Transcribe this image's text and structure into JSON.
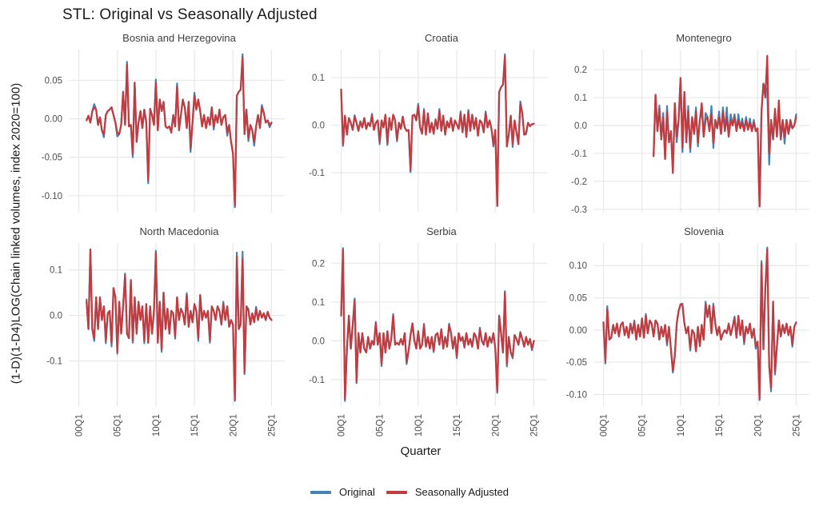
{
  "page": {
    "title": "STL: Original vs Seasonally Adjusted"
  },
  "axes": {
    "x_title": "Quarter",
    "y_title": "(1-D)(1-D4)LOG(Chain linked volumes, index 2020=100)"
  },
  "legend": {
    "items": [
      {
        "label": "Original",
        "color": "#4682b4"
      },
      {
        "label": "Seasonally Adjusted",
        "color": "#c23b3e"
      }
    ]
  },
  "chart_data": {
    "type": "line",
    "title": "STL: Original vs Seasonally Adjusted",
    "xlabel": "Quarter",
    "ylabel": "(1-D)(1-D4)LOG(Chain linked volumes, index 2020=100)",
    "x_unit": "quarterly, 2000Q1 to 2025Q1",
    "x_ticks": [
      "00Q1",
      "05Q1",
      "10Q1",
      "15Q1",
      "20Q1",
      "25Q1"
    ],
    "x_tick_years": [
      2000,
      2005,
      2010,
      2015,
      2020,
      2025
    ],
    "x_domain": [
      1998.7,
      2026.3
    ],
    "grid": true,
    "grid_color": "#e8e8e8",
    "legend_position": "bottom",
    "series_names": [
      "Original",
      "Seasonally Adjusted"
    ],
    "colors": {
      "original": "#4682b4",
      "seasonally_adjusted": "#c23b3e"
    },
    "note": "original = seasonally_adjusted value + orig_delta at matching absolute quarter index; start_index 0 = 2000Q1",
    "panels": [
      {
        "title": "Bosnia and Herzegovina",
        "y_tick_labels": [
          "0.05",
          "0.00",
          "-0.05",
          "-0.10"
        ],
        "y_ticks": [
          0.05,
          0.0,
          -0.05,
          -0.1
        ],
        "y_domain": [
          -0.122,
          0.09
        ],
        "start_index": 4,
        "sa": [
          -0.002,
          0.004,
          -0.005,
          0.01,
          0.015,
          0.012,
          -0.008,
          0.002,
          -0.015,
          -0.02,
          0.005,
          0.01,
          0.012,
          0.015,
          0.005,
          -0.005,
          -0.018,
          -0.02,
          -0.008,
          0.035,
          -0.008,
          0.07,
          -0.01,
          -0.008,
          -0.046,
          0.047,
          -0.03,
          -0.005,
          0.01,
          -0.012,
          0.012,
          -0.005,
          -0.08,
          0.013,
          0.005,
          -0.008,
          0.047,
          -0.015,
          0.025,
          0.01,
          0.022,
          -0.01,
          -0.012,
          -0.01,
          -0.018,
          0.005,
          -0.01,
          0.042,
          -0.015,
          0.005,
          0.025,
          0.015,
          -0.012,
          0.022,
          -0.038,
          -0.005,
          0.03,
          0.012,
          0.025,
          0.01,
          -0.01,
          0.005,
          -0.012,
          0.002,
          -0.008,
          0.015,
          -0.01,
          0.005,
          -0.005,
          0.012,
          -0.008,
          0.002,
          0.005,
          -0.018,
          -0.008,
          -0.03,
          -0.045,
          -0.113,
          0.03,
          0.035,
          0.038,
          0.08,
          -0.02,
          0.012,
          -0.025,
          -0.008,
          -0.015,
          -0.03,
          -0.01,
          0.005,
          -0.012,
          0.015,
          0.008,
          -0.005,
          -0.002,
          -0.008,
          -0.005
        ],
        "orig_delta": {
          "8": 0.004,
          "13": -0.004,
          "20": -0.005,
          "25": 0.004,
          "28": -0.004,
          "36": -0.004,
          "40": 0.004,
          "51": 0.004,
          "58": -0.005,
          "60": 0.004,
          "70": -0.004,
          "77": -0.004,
          "81": -0.002,
          "85": 0.004,
          "88": -0.004,
          "91": -0.005,
          "95": 0.003,
          "99": -0.003
        }
      },
      {
        "title": "Croatia",
        "y_tick_labels": [
          "0.1",
          "0.0",
          "-0.1"
        ],
        "y_ticks": [
          0.1,
          0.0,
          -0.1
        ],
        "y_domain": [
          -0.184,
          0.159
        ],
        "start_index": 0,
        "sa": [
          0.075,
          -0.04,
          0.02,
          -0.02,
          0.015,
          0.005,
          -0.01,
          0.018,
          0.005,
          -0.012,
          0.008,
          -0.005,
          0.015,
          -0.008,
          0.005,
          -0.002,
          0.02,
          -0.01,
          0.005,
          0.01,
          -0.035,
          0.01,
          -0.005,
          0.022,
          -0.038,
          0.015,
          -0.01,
          0.022,
          0.01,
          -0.03,
          0.005,
          -0.008,
          0.018,
          -0.005,
          -0.012,
          -0.01,
          -0.095,
          0.02,
          0.022,
          0.01,
          0.04,
          -0.005,
          -0.018,
          0.03,
          -0.02,
          0.025,
          -0.015,
          0.005,
          -0.018,
          0.012,
          -0.008,
          0.03,
          -0.012,
          0.02,
          -0.02,
          0.008,
          -0.005,
          0.015,
          -0.012,
          0.01,
          0.002,
          -0.008,
          0.025,
          -0.015,
          0.022,
          -0.025,
          0.028,
          -0.012,
          0.022,
          -0.008,
          0.015,
          -0.022,
          0.01,
          0.005,
          -0.015,
          0.025,
          -0.005,
          0.01,
          -0.008,
          -0.04,
          -0.01,
          -0.17,
          0.07,
          0.08,
          0.085,
          0.145,
          -0.045,
          -0.02,
          0.02,
          -0.04,
          0.01,
          -0.015,
          -0.04,
          0.045,
          0.025,
          -0.02,
          -0.015,
          0.005,
          -0.002,
          0.002,
          0.003
        ],
        "orig_delta": {
          "1": -0.004,
          "7": 0.003,
          "16": 0.004,
          "20": -0.005,
          "24": -0.004,
          "29": -0.004,
          "36": -0.004,
          "40": 0.005,
          "43": 0.004,
          "51": 0.004,
          "62": 0.004,
          "66": 0.004,
          "75": 0.004,
          "79": -0.005,
          "85": 0.004,
          "89": -0.006,
          "93": 0.005,
          "96": -0.004
        }
      },
      {
        "title": "Montenegro",
        "y_tick_labels": [
          "0.2",
          "0.1",
          "0.0",
          "-0.1",
          "-0.2",
          "-0.3"
        ],
        "y_ticks": [
          0.2,
          0.1,
          0.0,
          -0.1,
          -0.2,
          -0.3
        ],
        "y_domain": [
          -0.312,
          0.272
        ],
        "start_index": 26,
        "sa": [
          -0.11,
          0.11,
          -0.02,
          0.06,
          -0.05,
          0.03,
          -0.12,
          0.05,
          -0.06,
          -0.02,
          -0.17,
          0.08,
          -0.04,
          0.02,
          0.17,
          -0.08,
          0.12,
          -0.06,
          0.05,
          -0.08,
          0.03,
          -0.03,
          0.05,
          -0.06,
          0.02,
          0.08,
          -0.04,
          0.02,
          0.03,
          -0.02,
          0.04,
          -0.06,
          0.02,
          -0.01,
          0.03,
          -0.03,
          0.05,
          -0.02,
          0.03,
          -0.04,
          0.02,
          0.0,
          0.03,
          -0.02,
          0.02,
          -0.01,
          0.01,
          -0.02,
          0.02,
          -0.015,
          0.01,
          -0.02,
          0.01,
          -0.02,
          -0.01,
          -0.29,
          0.05,
          0.15,
          0.1,
          0.25,
          -0.1,
          0.02,
          -0.05,
          0.06,
          -0.04,
          0.09,
          -0.05,
          0.02,
          -0.04,
          0.02,
          -0.03,
          0.02,
          -0.01,
          0.0,
          0.03
        ],
        "orig_delta": {
          "29": 0.012,
          "31": 0.015,
          "33": 0.02,
          "38": -0.02,
          "41": -0.015,
          "44": 0.02,
          "45": -0.015,
          "48": 0.015,
          "49": -0.015,
          "51": -0.02,
          "53": 0.025,
          "56": 0.03,
          "57": -0.02,
          "60": 0.02,
          "62": 0.015,
          "64": 0.035,
          "66": 0.02,
          "68": 0.01,
          "70": 0.02,
          "72": 0.015,
          "74": 0.01,
          "76": 0.015,
          "78": 0.01,
          "84": 0.035,
          "85": -0.12,
          "86": -0.04,
          "89": -0.02,
          "91": -0.025,
          "94": -0.025,
          "97": -0.015,
          "100": 0.01
        }
      },
      {
        "title": "North Macedonia",
        "y_tick_labels": [
          "0.1",
          "0.0",
          "-0.1"
        ],
        "y_ticks": [
          0.1,
          0.0,
          -0.1
        ],
        "y_domain": [
          -0.199,
          0.159
        ],
        "start_index": 4,
        "sa": [
          0.03,
          -0.03,
          0.145,
          -0.03,
          -0.05,
          0.04,
          -0.03,
          0.04,
          -0.01,
          0.02,
          -0.055,
          0.005,
          0.01,
          -0.06,
          0.06,
          0.04,
          -0.08,
          0.03,
          -0.04,
          0.02,
          0.088,
          -0.04,
          -0.05,
          0.078,
          -0.055,
          0.04,
          -0.04,
          0.03,
          -0.01,
          0.02,
          -0.055,
          0.025,
          -0.06,
          0.02,
          -0.04,
          0.01,
          0.138,
          -0.06,
          0.03,
          -0.075,
          0.05,
          -0.03,
          0.015,
          -0.04,
          0.01,
          0.005,
          -0.045,
          0.04,
          -0.01,
          0.015,
          0.005,
          -0.02,
          0.045,
          -0.025,
          0.01,
          -0.015,
          0.025,
          0.01,
          -0.05,
          0.045,
          -0.01,
          0.01,
          -0.005,
          0.01,
          -0.055,
          0.02,
          0.01,
          -0.01,
          0.02,
          0.01,
          -0.02,
          0.025,
          -0.01,
          0.02,
          -0.025,
          -0.01,
          -0.02,
          -0.185,
          0.13,
          -0.03,
          -0.02,
          0.125,
          -0.125,
          0.02,
          0.01,
          -0.02,
          0.005,
          -0.015,
          0.015,
          -0.01,
          0.01,
          -0.005,
          0.005,
          -0.01,
          0.008,
          -0.005,
          -0.01
        ],
        "orig_delta": {
          "4": 0.005,
          "8": -0.006,
          "14": -0.006,
          "17": -0.008,
          "20": -0.004,
          "24": 0.004,
          "28": -0.005,
          "34": -0.006,
          "40": 0.004,
          "43": -0.005,
          "50": -0.006,
          "56": 0.004,
          "62": -0.006,
          "68": -0.005,
          "75": 0.005,
          "81": -0.003,
          "82": 0.008,
          "85": 0.015,
          "86": -0.004,
          "88": 0.004,
          "92": 0.004
        }
      },
      {
        "title": "Serbia",
        "y_tick_labels": [
          "0.2",
          "0.1",
          "0.0",
          "-0.1"
        ],
        "y_ticks": [
          0.2,
          0.1,
          0.0,
          -0.1
        ],
        "y_domain": [
          -0.168,
          0.252
        ],
        "start_index": 0,
        "sa": [
          0.065,
          0.235,
          -0.15,
          -0.02,
          0.065,
          -0.02,
          0.04,
          0.105,
          -0.105,
          0.02,
          -0.03,
          0.02,
          -0.02,
          -0.03,
          0.01,
          -0.02,
          0.0,
          -0.01,
          0.045,
          -0.01,
          0.02,
          -0.06,
          0.02,
          -0.03,
          0.025,
          -0.02,
          0.005,
          0.065,
          -0.01,
          -0.005,
          -0.01,
          0.005,
          -0.01,
          0.02,
          -0.055,
          -0.025,
          0.015,
          0.045,
          0.0,
          -0.02,
          0.025,
          -0.02,
          -0.01,
          0.04,
          -0.015,
          0.01,
          -0.02,
          0.01,
          -0.025,
          0.015,
          0.02,
          -0.01,
          0.03,
          -0.02,
          0.01,
          -0.015,
          0.04,
          0.02,
          -0.02,
          0.01,
          -0.04,
          0.02,
          0.0,
          0.01,
          -0.015,
          0.02,
          -0.01,
          0.005,
          -0.015,
          0.02,
          0.01,
          -0.02,
          0.03,
          0.0,
          -0.01,
          0.02,
          -0.015,
          0.01,
          -0.005,
          0.02,
          -0.02,
          -0.13,
          0.065,
          0.02,
          -0.03,
          0.125,
          -0.06,
          0.01,
          -0.03,
          -0.04,
          0.015,
          0.005,
          -0.01,
          0.02,
          0.005,
          -0.015,
          0.01,
          -0.01,
          0.005,
          -0.02,
          0.0
        ],
        "orig_delta": {
          "1": 0.004,
          "2": -0.005,
          "7": 0.004,
          "8": -0.004,
          "18": 0.004,
          "21": -0.005,
          "27": 0.004,
          "34": -0.005,
          "43": 0.004,
          "48": -0.004,
          "56": 0.004,
          "60": -0.005,
          "64": -0.003,
          "72": 0.004,
          "81": -0.004,
          "85": 0.003,
          "86": -0.006,
          "89": -0.005,
          "93": 0.003,
          "99": -0.004
        }
      },
      {
        "title": "Slovenia",
        "y_tick_labels": [
          "0.10",
          "0.05",
          "0.00",
          "-0.05",
          "-0.10"
        ],
        "y_ticks": [
          0.1,
          0.05,
          0.0,
          -0.05,
          -0.1
        ],
        "y_domain": [
          -0.118,
          0.135
        ],
        "start_index": 0,
        "sa": [
          0.012,
          -0.048,
          0.033,
          -0.015,
          -0.012,
          0.008,
          -0.005,
          0.01,
          -0.01,
          0.008,
          0.012,
          -0.008,
          0.005,
          -0.012,
          0.01,
          -0.005,
          0.012,
          -0.015,
          0.008,
          -0.01,
          0.018,
          -0.012,
          0.022,
          -0.005,
          0.015,
          0.01,
          -0.01,
          0.015,
          0.01,
          -0.015,
          0.005,
          -0.01,
          0.008,
          -0.02,
          0.005,
          -0.03,
          -0.063,
          -0.04,
          0.01,
          0.03,
          0.04,
          0.038,
          0.01,
          -0.005,
          0.005,
          -0.028,
          0.0,
          -0.005,
          -0.033,
          0.005,
          -0.025,
          0.008,
          -0.015,
          0.04,
          0.02,
          0.038,
          -0.005,
          0.037,
          0.01,
          -0.008,
          0.005,
          -0.015,
          -0.005,
          0.0,
          -0.005,
          0.01,
          -0.008,
          0.005,
          0.018,
          -0.012,
          0.022,
          -0.008,
          0.015,
          -0.018,
          0.005,
          -0.005,
          0.01,
          -0.012,
          0.002,
          -0.025,
          -0.018,
          -0.107,
          0.103,
          -0.03,
          0.065,
          0.125,
          -0.055,
          -0.09,
          0.044,
          -0.065,
          -0.025,
          0.015,
          -0.01,
          0.008,
          -0.005,
          0.01,
          -0.008,
          0.005,
          -0.022,
          0.005,
          0.012
        ],
        "orig_delta": {
          "1": -0.004,
          "2": 0.004,
          "16": 0.003,
          "22": 0.003,
          "33": -0.004,
          "36": -0.003,
          "41": 0.003,
          "45": -0.004,
          "53": 0.004,
          "57": 0.004,
          "68": 0.003,
          "73": -0.004,
          "79": -0.004,
          "81": -0.002,
          "82": 0.004,
          "85": 0.003,
          "87": -0.005,
          "89": -0.004,
          "98": -0.004
        }
      }
    ]
  }
}
